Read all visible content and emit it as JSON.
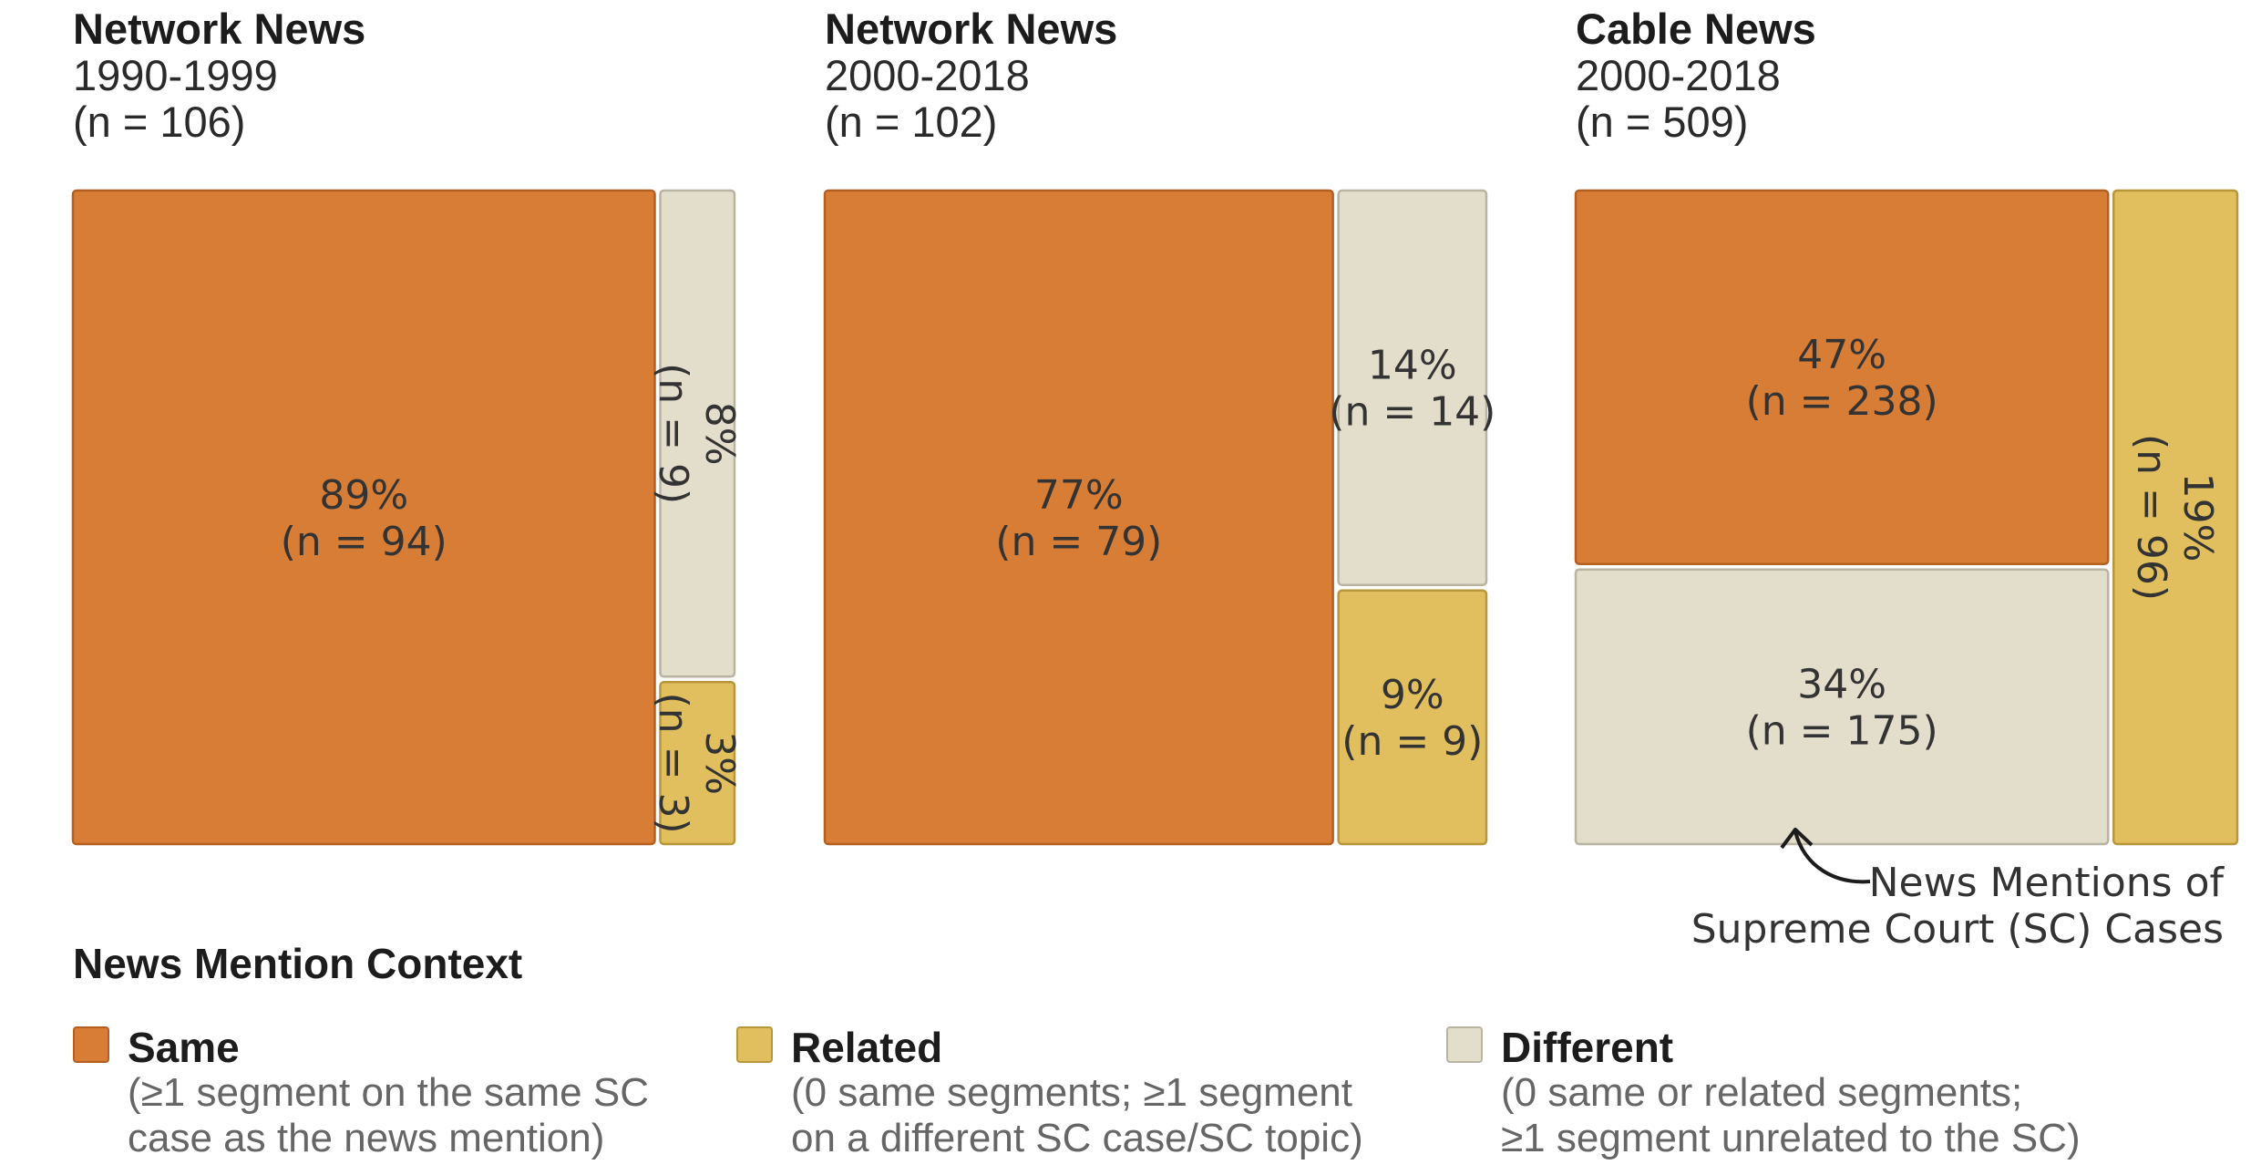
{
  "colors": {
    "same": "#D87D35",
    "same_border": "#B45F22",
    "related": "#E2BF5E",
    "related_border": "#B8963A",
    "different": "#E3DDCB",
    "different_border": "#B9B3A1"
  },
  "panels": [
    {
      "title": "Network News",
      "years": "1990-1999",
      "n_label": "(n = 106)"
    },
    {
      "title": "Network News",
      "years": "2000-2018",
      "n_label": "(n = 102)"
    },
    {
      "title": "Cable News",
      "years": "2000-2018",
      "n_label": "(n = 509)"
    }
  ],
  "chart_data": [
    {
      "type": "treemap",
      "title": "Network News 1990-1999",
      "total_n": 106,
      "cells": [
        {
          "category": "Same",
          "percent": 89,
          "n": 94,
          "pct_label": "89%",
          "n_label": "(n = 94)"
        },
        {
          "category": "Different",
          "percent": 8,
          "n": 9,
          "pct_label": "8%",
          "n_label": "(n = 9)"
        },
        {
          "category": "Related",
          "percent": 3,
          "n": 3,
          "pct_label": "3%",
          "n_label": "(n = 3)"
        }
      ]
    },
    {
      "type": "treemap",
      "title": "Network News 2000-2018",
      "total_n": 102,
      "cells": [
        {
          "category": "Same",
          "percent": 77,
          "n": 79,
          "pct_label": "77%",
          "n_label": "(n = 79)"
        },
        {
          "category": "Different",
          "percent": 14,
          "n": 14,
          "pct_label": "14%",
          "n_label": "(n = 14)"
        },
        {
          "category": "Related",
          "percent": 9,
          "n": 9,
          "pct_label": "9%",
          "n_label": "(n = 9)"
        }
      ]
    },
    {
      "type": "treemap",
      "title": "Cable News 2000-2018",
      "total_n": 509,
      "cells": [
        {
          "category": "Same",
          "percent": 47,
          "n": 238,
          "pct_label": "47%",
          "n_label": "(n = 238)"
        },
        {
          "category": "Different",
          "percent": 34,
          "n": 175,
          "pct_label": "34%",
          "n_label": "(n = 175)"
        },
        {
          "category": "Related",
          "percent": 19,
          "n": 96,
          "pct_label": "19%",
          "n_label": "(n = 96)"
        }
      ]
    }
  ],
  "annotation": {
    "line1": "News Mentions of",
    "line2": "Supreme Court (SC) Cases"
  },
  "legend": {
    "title": "News Mention Context",
    "items": [
      {
        "label": "Same",
        "desc1": "(≥1 segment on the same SC",
        "desc2": "case as the news mention)"
      },
      {
        "label": "Related",
        "desc1": "(0 same segments; ≥1 segment",
        "desc2": "on a different SC case/SC topic)"
      },
      {
        "label": "Different",
        "desc1": "(0 same or related segments;",
        "desc2": "≥1 segment unrelated to the SC)"
      }
    ]
  }
}
